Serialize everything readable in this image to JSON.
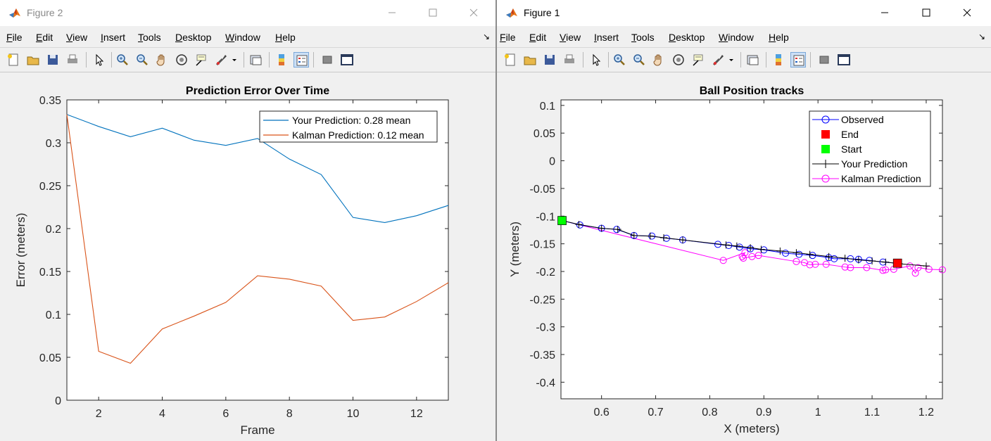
{
  "windows": [
    {
      "title": "Figure 2",
      "menu": [
        "File",
        "Edit",
        "View",
        "Insert",
        "Tools",
        "Desktop",
        "Window",
        "Help"
      ],
      "chart_data": {
        "type": "line",
        "title": "Prediction Error Over Time",
        "xlabel": "Frame",
        "ylabel": "Error (meters)",
        "xlim": [
          1,
          13
        ],
        "ylim": [
          0,
          0.35
        ],
        "xticks": [
          2,
          4,
          6,
          8,
          10,
          12
        ],
        "xtick_labels": [
          "2",
          "4",
          "6",
          "8",
          "10",
          "12"
        ],
        "yticks": [
          0,
          0.05,
          0.1,
          0.15,
          0.2,
          0.25,
          0.3,
          0.35
        ],
        "ytick_labels": [
          "0",
          "0.05",
          "0.1",
          "0.15",
          "0.2",
          "0.25",
          "0.3",
          "0.35"
        ],
        "x": [
          1,
          2,
          3,
          4,
          5,
          6,
          7,
          8,
          9,
          10,
          11,
          12,
          13
        ],
        "series": [
          {
            "name": "Your Prediction: 0.28 mean",
            "color": "#0072bd",
            "values": [
              0.333,
              0.319,
              0.307,
              0.317,
              0.303,
              0.297,
              0.305,
              0.281,
              0.263,
              0.213,
              0.207,
              0.215,
              0.227
            ]
          },
          {
            "name": "Kalman Prediction: 0.12 mean",
            "color": "#d95319",
            "values": [
              0.333,
              0.057,
              0.043,
              0.083,
              0.098,
              0.114,
              0.145,
              0.141,
              0.133,
              0.093,
              0.097,
              0.115,
              0.137
            ]
          }
        ],
        "legend_position": "top-right",
        "grid": false
      }
    },
    {
      "title": "Figure 1",
      "menu": [
        "File",
        "Edit",
        "View",
        "Insert",
        "Tools",
        "Desktop",
        "Window",
        "Help"
      ],
      "chart_data": {
        "type": "scatter",
        "title": "Ball Position tracks",
        "xlabel": "X (meters)",
        "ylabel": "Y (meters)",
        "xlim": [
          0.525,
          1.23
        ],
        "ylim": [
          -0.43,
          0.11
        ],
        "xticks": [
          0.6,
          0.7,
          0.8,
          0.9,
          1,
          1.1,
          1.2
        ],
        "xtick_labels": [
          "0.6",
          "0.7",
          "0.8",
          "0.9",
          "1",
          "1.1",
          "1.2"
        ],
        "yticks": [
          0.1,
          0.05,
          0,
          -0.05,
          -0.1,
          -0.15,
          -0.2,
          -0.25,
          -0.3,
          -0.35,
          -0.4
        ],
        "ytick_labels": [
          "0.1",
          "0.05",
          "0",
          "-0.05",
          "-0.1",
          "-0.15",
          "-0.2",
          "-0.25",
          "-0.3",
          "-0.35",
          "-0.4"
        ],
        "series": [
          {
            "name": "Observed",
            "color": "#0000ff",
            "marker": "circle",
            "line": true,
            "x": [
              0.527,
              0.56,
              0.6,
              0.628,
              0.66,
              0.693,
              0.72,
              0.75,
              0.815,
              0.835,
              0.855,
              0.875,
              0.9,
              0.94,
              0.965,
              0.99,
              1.02,
              1.03,
              1.06,
              1.075,
              1.095,
              1.12,
              1.147
            ],
            "y": [
              -0.108,
              -0.116,
              -0.122,
              -0.124,
              -0.135,
              -0.136,
              -0.14,
              -0.143,
              -0.151,
              -0.153,
              -0.156,
              -0.159,
              -0.161,
              -0.167,
              -0.169,
              -0.171,
              -0.175,
              -0.177,
              -0.177,
              -0.178,
              -0.18,
              -0.183,
              -0.185
            ]
          },
          {
            "name": "End",
            "color": "#ff0000",
            "marker": "square",
            "x": [
              1.147
            ],
            "y": [
              -0.185
            ]
          },
          {
            "name": "Start",
            "color": "#00ff00",
            "marker": "square",
            "x": [
              0.527
            ],
            "y": [
              -0.108
            ]
          },
          {
            "name": "Your Prediction",
            "color": "#000000",
            "marker": "plus",
            "line": true,
            "x": [
              0.527,
              0.558,
              0.6,
              0.63,
              0.66,
              0.69,
              0.715,
              0.75,
              0.83,
              0.85,
              0.875,
              0.895,
              0.93,
              0.96,
              0.985,
              1.02,
              1.05,
              1.075,
              1.1,
              1.125,
              1.15,
              1.2
            ],
            "y": [
              -0.108,
              -0.115,
              -0.122,
              -0.124,
              -0.135,
              -0.136,
              -0.139,
              -0.143,
              -0.152,
              -0.154,
              -0.157,
              -0.16,
              -0.163,
              -0.166,
              -0.169,
              -0.173,
              -0.176,
              -0.179,
              -0.181,
              -0.183,
              -0.186,
              -0.19
            ]
          },
          {
            "name": "Kalman Prediction",
            "color": "#ff00ff",
            "marker": "circle",
            "line": true,
            "x": [
              0.527,
              0.825,
              0.865,
              0.86,
              0.862,
              0.878,
              0.89,
              0.96,
              0.975,
              0.985,
              0.995,
              1.015,
              1.05,
              1.06,
              1.09,
              1.12,
              1.125,
              1.14,
              1.17,
              1.18,
              1.185,
              1.205,
              1.23
            ],
            "y": [
              -0.108,
              -0.18,
              -0.166,
              -0.173,
              -0.176,
              -0.173,
              -0.171,
              -0.182,
              -0.184,
              -0.188,
              -0.187,
              -0.187,
              -0.192,
              -0.193,
              -0.193,
              -0.198,
              -0.197,
              -0.196,
              -0.19,
              -0.203,
              -0.193,
              -0.196,
              -0.197
            ]
          }
        ],
        "legend_position": "top-right",
        "grid": false
      }
    }
  ]
}
